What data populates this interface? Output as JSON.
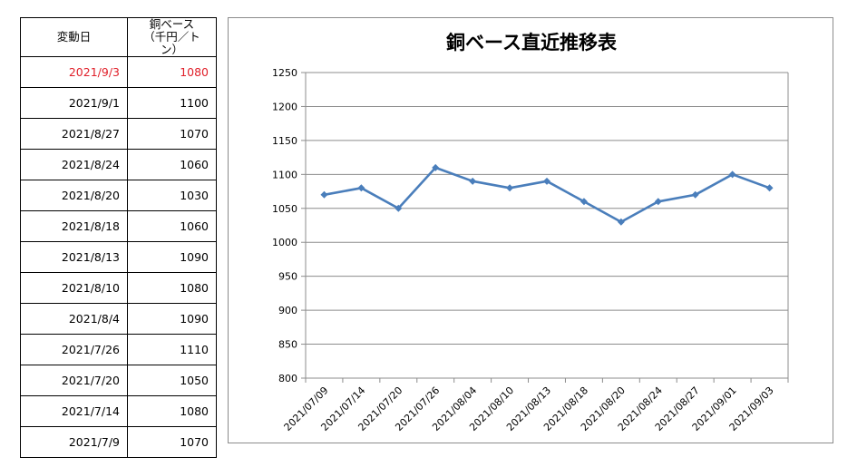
{
  "table": {
    "header": {
      "date": "変動日",
      "price_line1": "銅ベース",
      "price_line2": "（千円／トン）"
    },
    "rows": [
      {
        "date": "2021/9/3",
        "price": "1080",
        "latest": true
      },
      {
        "date": "2021/9/1",
        "price": "1100"
      },
      {
        "date": "2021/8/27",
        "price": "1070"
      },
      {
        "date": "2021/8/24",
        "price": "1060"
      },
      {
        "date": "2021/8/20",
        "price": "1030"
      },
      {
        "date": "2021/8/18",
        "price": "1060"
      },
      {
        "date": "2021/8/13",
        "price": "1090"
      },
      {
        "date": "2021/8/10",
        "price": "1080"
      },
      {
        "date": "2021/8/4",
        "price": "1090"
      },
      {
        "date": "2021/7/26",
        "price": "1110"
      },
      {
        "date": "2021/7/20",
        "price": "1050"
      },
      {
        "date": "2021/7/14",
        "price": "1080"
      },
      {
        "date": "2021/7/9",
        "price": "1070"
      }
    ],
    "latest_color": "#e0202a"
  },
  "chart_data": {
    "type": "line",
    "title": "銅ベース直近推移表",
    "xlabel": "",
    "ylabel": "",
    "ylim": [
      800,
      1250
    ],
    "yticks": [
      800,
      850,
      900,
      950,
      1000,
      1050,
      1100,
      1150,
      1200,
      1250
    ],
    "grid": true,
    "legend": "none",
    "line_color": "#4a7ebb",
    "categories": [
      "2021/07/09",
      "2021/07/14",
      "2021/07/20",
      "2021/07/26",
      "2021/08/04",
      "2021/08/10",
      "2021/08/13",
      "2021/08/18",
      "2021/08/20",
      "2021/08/24",
      "2021/08/27",
      "2021/09/01",
      "2021/09/03"
    ],
    "series": [
      {
        "values": [
          1070,
          1080,
          1050,
          1110,
          1090,
          1080,
          1090,
          1060,
          1030,
          1060,
          1070,
          1100,
          1080
        ]
      }
    ]
  }
}
